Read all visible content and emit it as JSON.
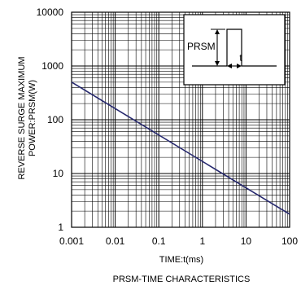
{
  "chart_data": {
    "type": "line",
    "title": "PRSM-TIME CHARACTERISTICS",
    "xlabel": "TIME:t(ms)",
    "ylabel_lines": [
      "REVERSE SURGE MAXIMUM",
      "POWER:PRSM(W)"
    ],
    "x_scale": "log",
    "y_scale": "log",
    "xlim": [
      0.001,
      100
    ],
    "ylim": [
      1,
      10000
    ],
    "x_ticks": [
      "0.001",
      "0.01",
      "0.1",
      "1",
      "10",
      "100"
    ],
    "y_ticks": [
      "1",
      "10",
      "100",
      "1000",
      "10000"
    ],
    "grid": true,
    "series": [
      {
        "x": [
          0.001,
          100
        ],
        "y": [
          500,
          1.75
        ]
      }
    ],
    "line_color": "#26286e",
    "inset": {
      "label_prsm": "PRSM",
      "label_t": "t"
    }
  }
}
